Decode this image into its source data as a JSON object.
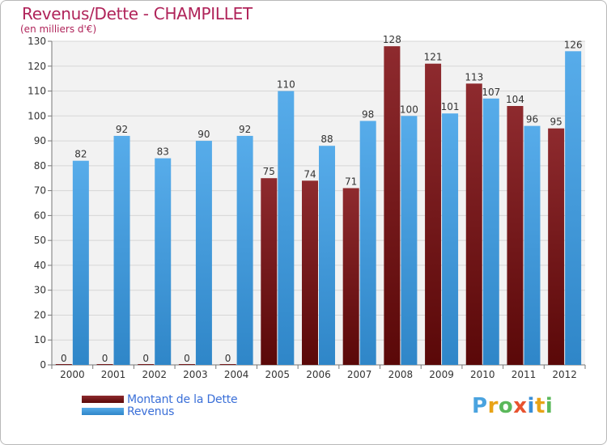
{
  "chart_data": {
    "type": "bar",
    "title": "Revenus/Dette - CHAMPILLET",
    "subtitle": "(en milliers d'€)",
    "categories": [
      "2000",
      "2001",
      "2002",
      "2003",
      "2004",
      "2005",
      "2006",
      "2007",
      "2008",
      "2009",
      "2010",
      "2011",
      "2012"
    ],
    "series": [
      {
        "name": "Montant de la Dette",
        "color": "#7a1e22",
        "values": [
          0,
          0,
          0,
          0,
          0,
          75,
          74,
          71,
          128,
          121,
          113,
          104,
          95
        ]
      },
      {
        "name": "Revenus",
        "color": "#3d9ee0",
        "values": [
          82,
          92,
          83,
          90,
          92,
          110,
          88,
          98,
          100,
          101,
          107,
          96,
          126
        ]
      }
    ],
    "ylim": [
      0,
      130
    ],
    "yticks": [
      0,
      10,
      20,
      30,
      40,
      50,
      60,
      70,
      80,
      90,
      100,
      110,
      120,
      130
    ],
    "grid": true,
    "legend": "bottom-left"
  },
  "logo": {
    "letters": [
      {
        "ch": "P",
        "color": "#4aa3df"
      },
      {
        "ch": "r",
        "color": "#e8a317"
      },
      {
        "ch": "o",
        "color": "#5bb85b"
      },
      {
        "ch": "x",
        "color": "#e8532f"
      },
      {
        "ch": "i",
        "color": "#3a8fd8"
      },
      {
        "ch": "t",
        "color": "#e8a317"
      },
      {
        "ch": "i",
        "color": "#5bb85b"
      }
    ]
  }
}
